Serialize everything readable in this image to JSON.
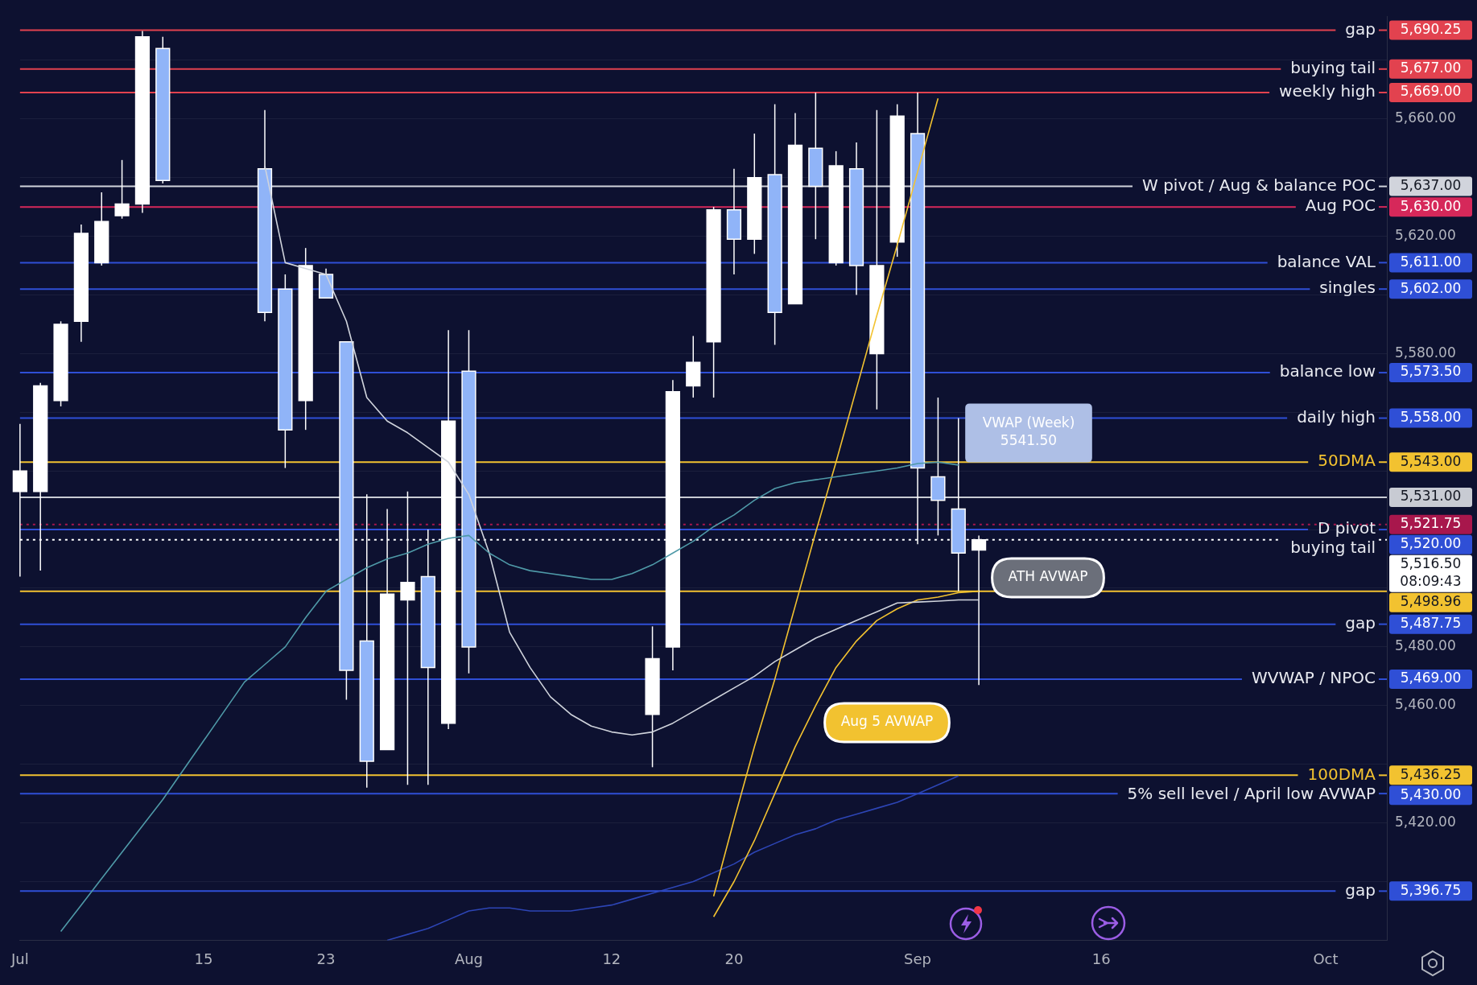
{
  "chart_data": {
    "type": "candlestick",
    "categories": [
      "Jul",
      null,
      null,
      null,
      null,
      null,
      null,
      null,
      null,
      "15",
      null,
      null,
      null,
      null,
      null,
      "23",
      null,
      null,
      null,
      null,
      null,
      null,
      "Aug",
      null,
      null,
      null,
      null,
      null,
      null,
      "12",
      null,
      null,
      null,
      null,
      null,
      "20",
      null,
      null,
      null,
      null,
      null,
      null,
      null,
      null,
      "Sep",
      null,
      null,
      null,
      null,
      null,
      null,
      null,
      null,
      "16",
      null,
      null,
      null,
      null,
      null,
      null,
      null,
      null,
      null,
      null,
      "Oct",
      null,
      null,
      null
    ],
    "ohlc": [
      [
        5533,
        5556,
        5504,
        5540
      ],
      [
        5533,
        5570,
        5506,
        5569
      ],
      [
        5564,
        5591,
        5562,
        5590
      ],
      [
        5591,
        5624,
        5584,
        5621
      ],
      [
        5611,
        5635,
        5610,
        5625
      ],
      [
        5627,
        5646,
        5626,
        5631
      ],
      [
        5631,
        5690,
        5628,
        5688
      ],
      [
        5684,
        5688,
        5638,
        5639
      ],
      null,
      null,
      null,
      null,
      [
        5643,
        5663,
        5591,
        5594
      ],
      [
        5602,
        5607,
        5541,
        5554
      ],
      [
        5564,
        5616,
        5554,
        5610
      ],
      [
        5607,
        5609,
        5599,
        5599
      ],
      [
        5584,
        5584,
        5462,
        5472
      ],
      [
        5482,
        5532,
        5432,
        5441
      ],
      [
        5445,
        5527,
        5445,
        5498
      ],
      [
        5496,
        5533,
        5433,
        5502
      ],
      [
        5504,
        5520,
        5433,
        5473
      ],
      [
        5454,
        5588,
        5452,
        5557
      ],
      [
        5574,
        5588,
        5471,
        5480
      ],
      null,
      null,
      null,
      null,
      null,
      null,
      null,
      null,
      [
        5457,
        5487,
        5439,
        5476
      ],
      [
        5480,
        5571,
        5472,
        5567
      ],
      [
        5569,
        5586,
        5565,
        5577
      ],
      [
        5584,
        5630,
        5565,
        5629
      ],
      [
        5629,
        5643,
        5607,
        5619
      ],
      [
        5619,
        5655,
        5614,
        5640
      ],
      [
        5641,
        5665,
        5583,
        5594
      ],
      [
        5597,
        5662,
        5597,
        5651
      ],
      [
        5650,
        5669,
        5619,
        5637
      ],
      [
        5611,
        5649,
        5610,
        5644
      ],
      [
        5643,
        5652,
        5600,
        5610
      ],
      [
        5580,
        5663,
        5561,
        5610
      ],
      [
        5618,
        5665,
        5613,
        5661
      ],
      [
        5655,
        5669,
        5515,
        5541
      ],
      [
        5538,
        5565,
        5518,
        5530
      ],
      [
        5527,
        5558,
        5499,
        5512
      ],
      [
        5513,
        5518,
        5467,
        5516.5
      ],
      null,
      null,
      null,
      null,
      null,
      null,
      null,
      null,
      null,
      null,
      null,
      null,
      null,
      null,
      null,
      null,
      null,
      null,
      null,
      null
    ],
    "colors": [
      "#ffffff",
      "#ffffff",
      "#ffffff",
      "#ffffff",
      "#ffffff",
      "#ffffff",
      "#ffffff",
      "#90b4f8",
      null,
      null,
      null,
      null,
      "#90b4f8",
      "#90b4f8",
      "#ffffff",
      "#90b4f8",
      "#90b4f8",
      "#90b4f8",
      "#ffffff",
      "#ffffff",
      "#90b4f8",
      "#ffffff",
      "#90b4f8",
      null,
      null,
      null,
      null,
      null,
      null,
      null,
      null,
      "#ffffff",
      "#ffffff",
      "#ffffff",
      "#ffffff",
      "#90b4f8",
      "#ffffff",
      "#90b4f8",
      "#ffffff",
      "#90b4f8",
      "#ffffff",
      "#90b4f8",
      "#ffffff",
      "#ffffff",
      "#90b4f8",
      "#90b4f8",
      "#90b4f8",
      "#ffffff",
      null,
      null,
      null,
      null,
      null,
      null,
      null,
      null,
      null,
      null,
      null,
      null,
      null,
      null,
      null,
      null,
      null,
      null,
      null,
      null
    ],
    "series": [
      {
        "type": "line",
        "color": "#4f9aa8",
        "values": [
          null,
          null,
          5383,
          5392,
          5401,
          5410,
          5419,
          5428,
          5438,
          5448,
          5458,
          5468,
          5474,
          5480,
          5490,
          5499,
          5503,
          5507,
          5510,
          5512,
          5515,
          5517,
          5518,
          5512,
          5508,
          5506,
          5505,
          5504,
          5503,
          5503,
          5505,
          5508,
          5512,
          5516,
          5521,
          5525,
          5530,
          5534,
          5536,
          5537,
          5538,
          5539,
          5540,
          5541,
          5542.5,
          5543,
          5542,
          null,
          null,
          null,
          null,
          null,
          null,
          null,
          null,
          null,
          null,
          null,
          null,
          null,
          null,
          null,
          null,
          null,
          null,
          null,
          null,
          null
        ]
      },
      {
        "type": "line",
        "color": "#d0d4dc",
        "values": [
          null,
          null,
          null,
          null,
          null,
          null,
          null,
          null,
          null,
          null,
          null,
          null,
          5644,
          5611,
          5609,
          5607,
          5591,
          5565,
          5557,
          5553,
          5548,
          5543,
          5532,
          5512,
          5485,
          5473,
          5463,
          5457,
          5453,
          5451,
          5450,
          5451,
          5454,
          5458,
          5462,
          5466,
          5470,
          5475,
          5479,
          5483,
          5486,
          5489,
          5492,
          5495,
          5495.3,
          5495.6,
          5496,
          5496,
          null,
          null,
          null,
          null,
          null,
          null,
          null,
          null,
          null,
          null,
          null,
          null,
          null,
          null,
          null,
          null,
          null,
          null,
          null,
          null
        ]
      },
      {
        "type": "line",
        "color": "#f2c230",
        "values": [
          null,
          null,
          null,
          null,
          null,
          null,
          null,
          null,
          null,
          null,
          null,
          null,
          null,
          null,
          null,
          null,
          null,
          null,
          null,
          null,
          null,
          null,
          null,
          null,
          null,
          null,
          null,
          null,
          null,
          null,
          null,
          null,
          null,
          null,
          5388,
          5400,
          5414,
          5430,
          5446,
          5460,
          5473,
          5482,
          5489,
          5493,
          5496,
          5497,
          5498.5,
          5499,
          null,
          null,
          null,
          null,
          null,
          null,
          null,
          null,
          null,
          null,
          null,
          null,
          null,
          null,
          null,
          null,
          null,
          null,
          null,
          null
        ]
      },
      {
        "type": "line",
        "color": "#f2c230",
        "values": [
          null,
          null,
          null,
          null,
          null,
          null,
          null,
          null,
          null,
          null,
          null,
          null,
          null,
          null,
          null,
          null,
          null,
          null,
          null,
          null,
          null,
          null,
          null,
          null,
          null,
          null,
          null,
          null,
          null,
          null,
          null,
          null,
          null,
          null,
          5395,
          5421,
          5446,
          5469,
          5494,
          5519,
          5543,
          5568,
          5593,
          5617,
          5642,
          5667,
          null,
          null,
          null,
          null,
          null,
          null,
          null,
          null,
          null,
          null,
          null,
          null,
          null,
          null,
          null,
          null,
          null,
          null,
          null,
          null,
          null,
          null
        ]
      },
      {
        "type": "line",
        "color": "#2d45b5",
        "values": [
          null,
          null,
          null,
          null,
          null,
          null,
          null,
          null,
          null,
          null,
          null,
          null,
          null,
          null,
          null,
          null,
          null,
          null,
          5380,
          5382,
          5384,
          5387,
          5390,
          5391,
          5391,
          5390,
          5390,
          5390,
          5391,
          5392,
          5394,
          5396,
          5398,
          5400,
          5403,
          5406,
          5410,
          5413,
          5416,
          5418,
          5421,
          5423,
          5425,
          5427,
          5430,
          5433,
          5436,
          null,
          null,
          null,
          null,
          null,
          null,
          null,
          null,
          null,
          null,
          null,
          null,
          null,
          null,
          null,
          null,
          null,
          null,
          null,
          null,
          null
        ]
      }
    ],
    "ylim": [
      5380,
      5695
    ],
    "yticks": [
      {
        "value": 5400,
        "label": null
      },
      {
        "value": 5420,
        "label": "5,420.00"
      },
      {
        "value": 5440,
        "label": null
      },
      {
        "value": 5460,
        "label": "5,460.00"
      },
      {
        "value": 5480,
        "label": "5,480.00"
      },
      {
        "value": 5500,
        "label": null
      },
      {
        "value": 5520,
        "label": null
      },
      {
        "value": 5540,
        "label": null
      },
      {
        "value": 5560,
        "label": null
      },
      {
        "value": 5580,
        "label": "5,580.00"
      },
      {
        "value": 5600,
        "label": null
      },
      {
        "value": 5620,
        "label": "5,620.00"
      },
      {
        "value": 5640,
        "label": null
      },
      {
        "value": 5660,
        "label": "5,660.00"
      },
      {
        "value": 5680,
        "label": null
      }
    ],
    "grid": "y",
    "ref_lines": [
      {
        "axis": "y",
        "value": 5690.25,
        "label": "gap",
        "color": "#e2424f"
      },
      {
        "axis": "y",
        "value": 5677,
        "label": "buying tail",
        "color": "#e2424f"
      },
      {
        "axis": "y",
        "value": 5669,
        "label": "weekly high",
        "color": "#e2424f"
      },
      {
        "axis": "y",
        "value": 5637,
        "label": "W pivot / Aug & balance POC",
        "color": "#d1d4dc"
      },
      {
        "axis": "y",
        "value": 5630,
        "label": "Aug POC",
        "color": "#d6285a"
      },
      {
        "axis": "y",
        "value": 5611,
        "label": "balance VAL",
        "color": "#2f4fd6"
      },
      {
        "axis": "y",
        "value": 5602,
        "label": "singles",
        "color": "#2f4fd6"
      },
      {
        "axis": "y",
        "value": 5573.5,
        "label": "balance low",
        "color": "#2f4fd6"
      },
      {
        "axis": "y",
        "value": 5558,
        "label": "daily high",
        "color": "#2f4fd6"
      },
      {
        "axis": "y",
        "value": 5543,
        "label": "50DMA",
        "color": "#f2c230"
      },
      {
        "axis": "y",
        "value": 5531,
        "label": null,
        "color": "#c8cbd3"
      },
      {
        "axis": "y",
        "value": 5521.75,
        "label": null,
        "color": "#a8174c",
        "line_style": "dotted"
      },
      {
        "axis": "y",
        "value": 5520,
        "label": "D pivot",
        "color": "#2f4fd6"
      },
      {
        "axis": "y",
        "value": 5516.5,
        "label": "buying tail",
        "color": "#ffffff",
        "line_style": "dotted"
      },
      {
        "axis": "y",
        "value": 5498.96,
        "label": null,
        "color": "#f2c230"
      },
      {
        "axis": "y",
        "value": 5487.75,
        "label": "gap",
        "color": "#2f4fd6"
      },
      {
        "axis": "y",
        "value": 5469,
        "label": "WVWAP / NPOC",
        "color": "#2f4fd6"
      },
      {
        "axis": "y",
        "value": 5436.25,
        "label": "100DMA",
        "color": "#f2c230"
      },
      {
        "axis": "y",
        "value": 5430,
        "label": "5% sell level / April low AVWAP",
        "color": "#2f4fd6"
      },
      {
        "axis": "y",
        "value": 5396.75,
        "label": "gap",
        "color": "#2f4fd6"
      }
    ],
    "annotations": [
      "5,690.25",
      "5,677.00",
      "5,669.00",
      "5,637.00",
      "5,630.00",
      "5,611.00",
      "5,602.00",
      "5,573.50",
      "5,558.00",
      "5,543.00",
      "5,531.00",
      "5,521.75",
      "5,520.00",
      "5,516.50",
      "5,498.96",
      "5,487.75",
      "5,469.00",
      "5,436.25",
      "5,430.00",
      "5,396.75",
      "VWAP (Week)\n5541.50",
      "ATH AVWAP",
      "Aug 5 AVWAP",
      "08:09:43"
    ]
  }
}
